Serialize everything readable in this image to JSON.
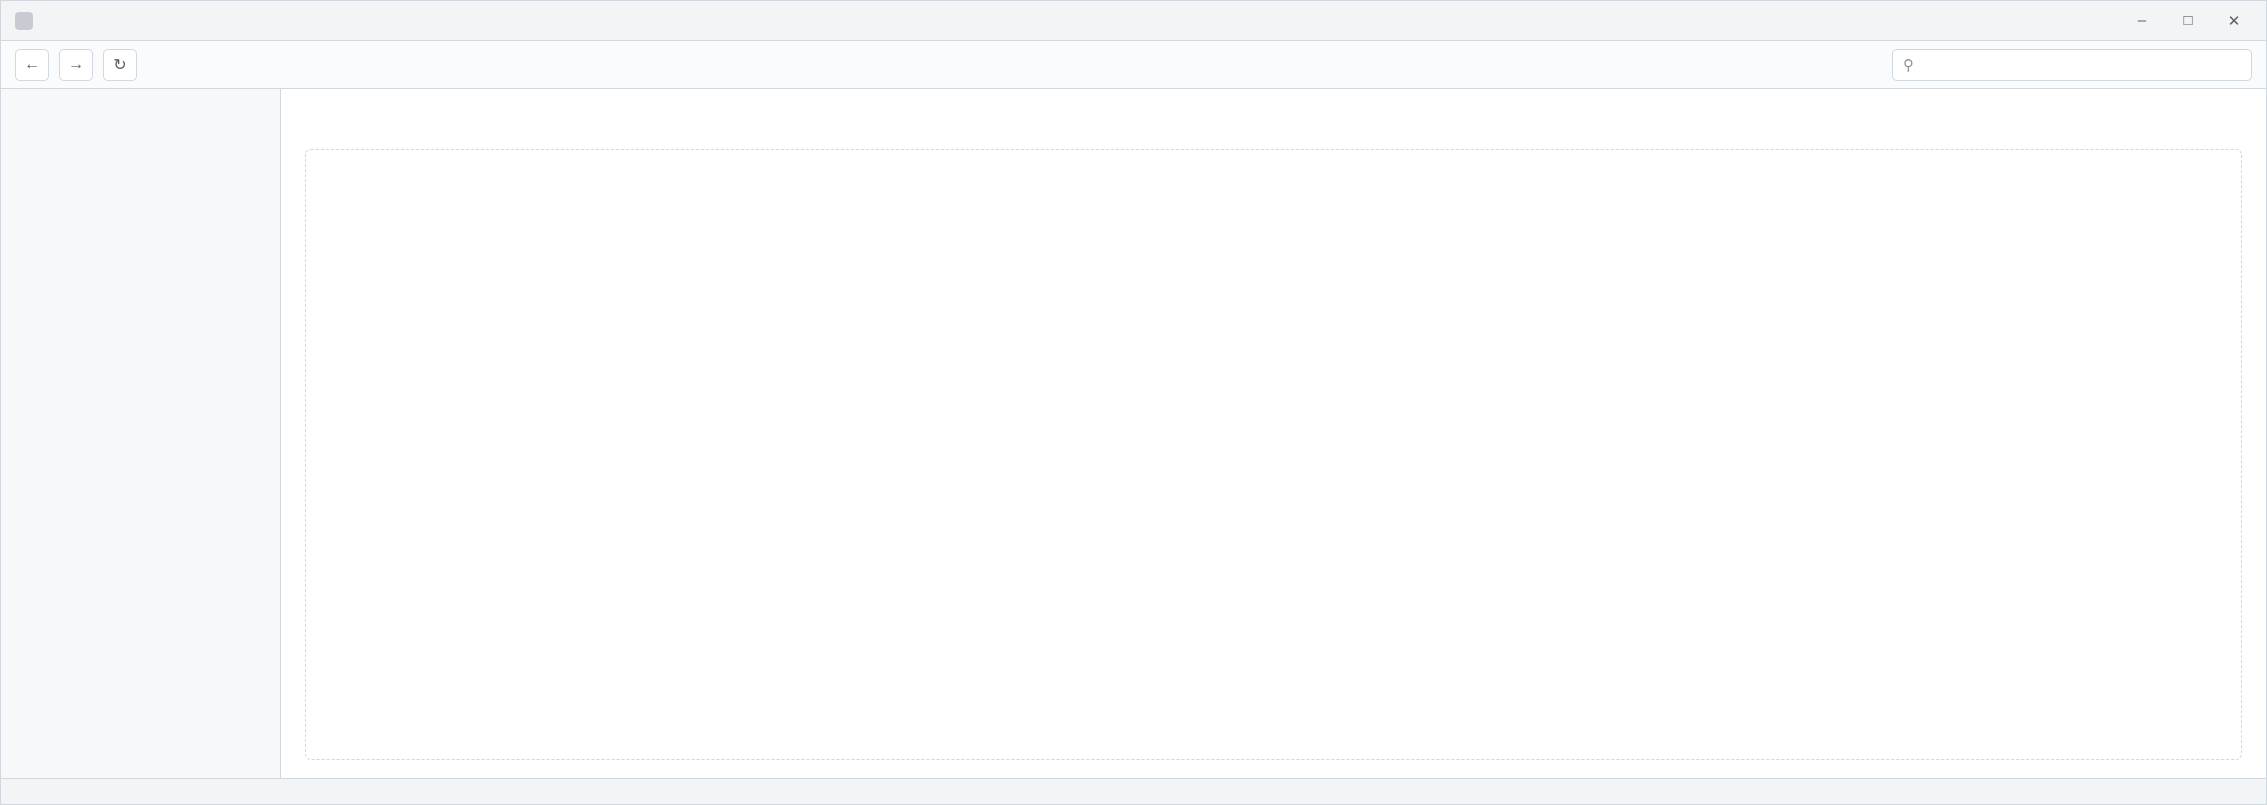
{
  "window": {
    "title": ""
  },
  "search": {
    "value": "",
    "placeholder": ""
  },
  "sidebar": {
    "items": []
  },
  "main": {
    "title": "",
    "items": []
  },
  "status": {
    "text": ""
  }
}
